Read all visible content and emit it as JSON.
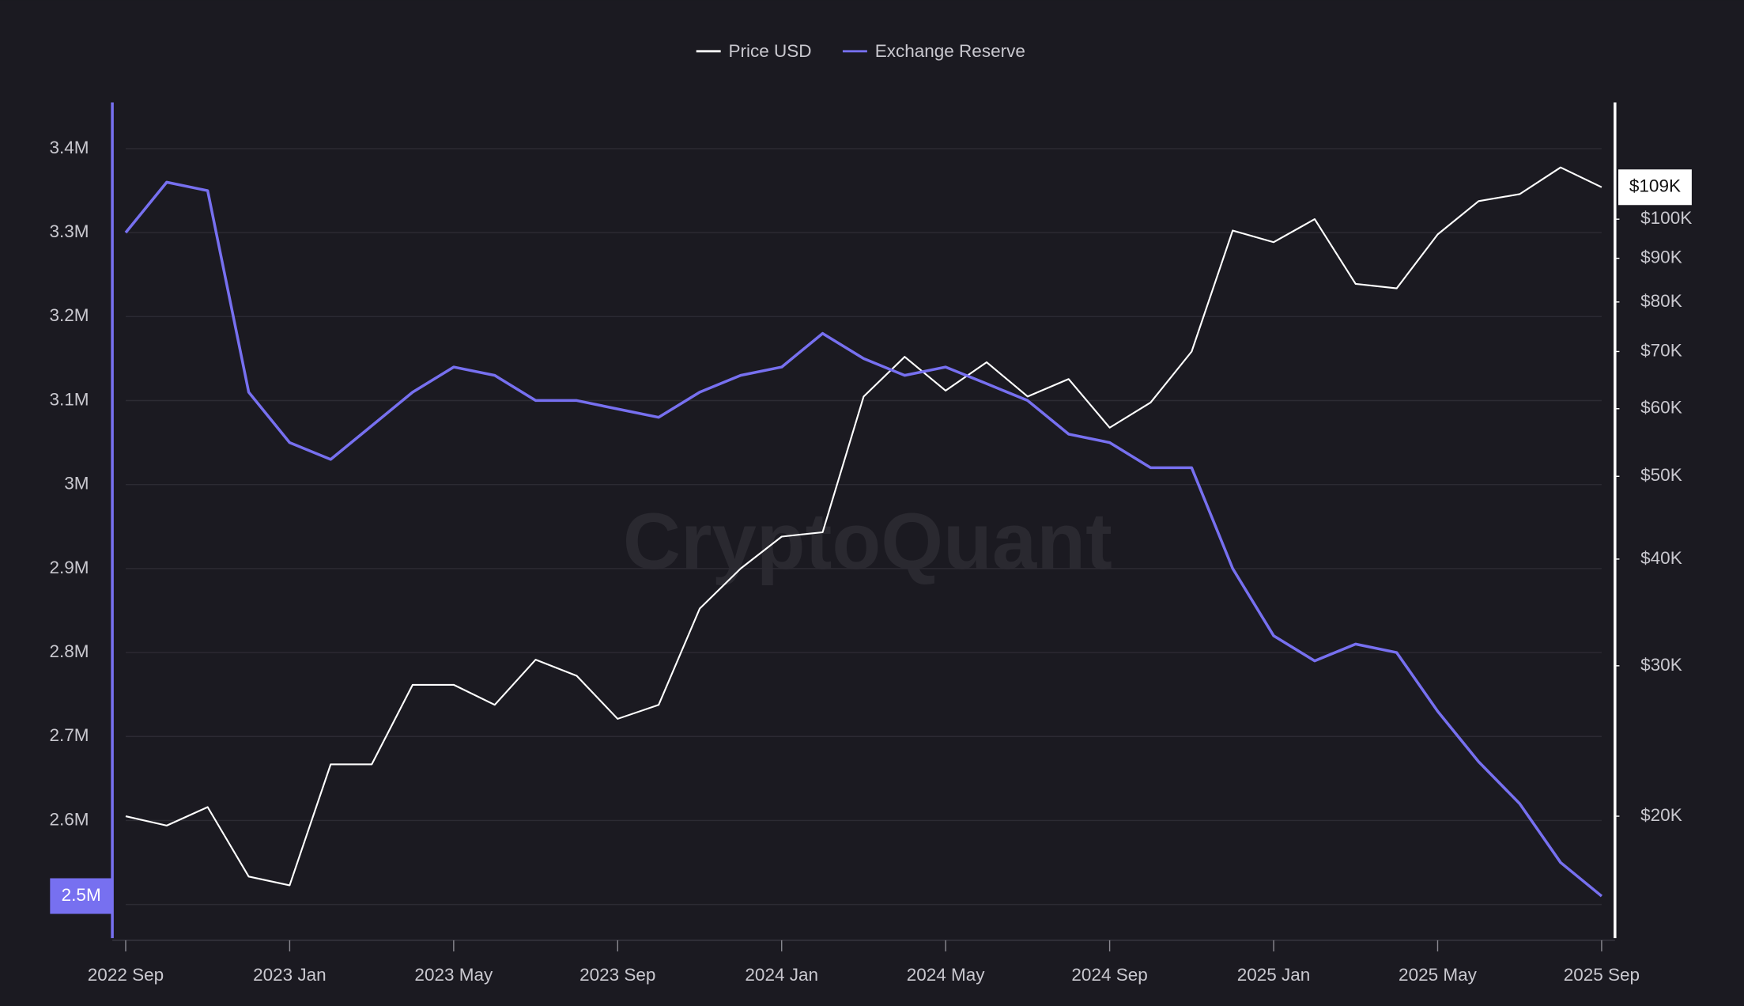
{
  "chart_data": {
    "type": "line",
    "watermark": "CryptoQuant",
    "categories": [
      "2022 Sep",
      null,
      null,
      null,
      "2023 Jan",
      null,
      null,
      null,
      "2023 May",
      null,
      null,
      null,
      "2023 Sep",
      null,
      null,
      null,
      "2024 Jan",
      null,
      null,
      null,
      "2024 May",
      null,
      null,
      null,
      "2024 Sep",
      null,
      null,
      null,
      "2025 Jan",
      null,
      null,
      null,
      "2025 May",
      null,
      null,
      null,
      "2025 Sep"
    ],
    "series": [
      {
        "name": "Price USD",
        "color": "#ffffff",
        "axis": "y2",
        "values": [
          20000,
          19500,
          20500,
          17000,
          16600,
          23000,
          23000,
          28500,
          28500,
          27000,
          30500,
          29200,
          26000,
          27000,
          35000,
          39000,
          42500,
          43000,
          62000,
          69000,
          63000,
          68000,
          62000,
          65000,
          57000,
          61000,
          70000,
          97000,
          94000,
          100000,
          84000,
          83000,
          96000,
          105000,
          107000,
          115000,
          109000
        ]
      },
      {
        "name": "Exchange Reserve",
        "color": "#7770f0",
        "axis": "y",
        "values": [
          3300000,
          3360000,
          3350000,
          3110000,
          3050000,
          3030000,
          3070000,
          3110000,
          3140000,
          3130000,
          3100000,
          3100000,
          3090000,
          3080000,
          3110000,
          3130000,
          3140000,
          3180000,
          3150000,
          3130000,
          3140000,
          3120000,
          3100000,
          3060000,
          3050000,
          3020000,
          3020000,
          2900000,
          2820000,
          2790000,
          2810000,
          2800000,
          2730000,
          2670000,
          2620000,
          2550000,
          2510000
        ]
      }
    ],
    "ylim": [
      2460000,
      3455000
    ],
    "yticks": [
      {
        "value": 2500000,
        "label": "2.5M"
      },
      {
        "value": 2600000,
        "label": "2.6M"
      },
      {
        "value": 2700000,
        "label": "2.7M"
      },
      {
        "value": 2800000,
        "label": "2.8M"
      },
      {
        "value": 2900000,
        "label": "2.9M"
      },
      {
        "value": 3000000,
        "label": "3M"
      },
      {
        "value": 3100000,
        "label": "3.1M"
      },
      {
        "value": 3200000,
        "label": "3.2M"
      },
      {
        "value": 3300000,
        "label": "3.3M"
      },
      {
        "value": 3400000,
        "label": "3.4M"
      }
    ],
    "y2lim": [
      14400,
      137000
    ],
    "y2log": true,
    "y2ticks": [
      {
        "value": 20000,
        "label": "$20K"
      },
      {
        "value": 30000,
        "label": "$30K"
      },
      {
        "value": 40000,
        "label": "$40K"
      },
      {
        "value": 50000,
        "label": "$50K"
      },
      {
        "value": 60000,
        "label": "$60K"
      },
      {
        "value": 70000,
        "label": "$70K"
      },
      {
        "value": 80000,
        "label": "$80K"
      },
      {
        "value": 90000,
        "label": "$90K"
      },
      {
        "value": 100000,
        "label": "$100K"
      }
    ],
    "grid": true,
    "legend": "top",
    "reserve_tag": "2.5M",
    "price_tag": "$109K"
  }
}
